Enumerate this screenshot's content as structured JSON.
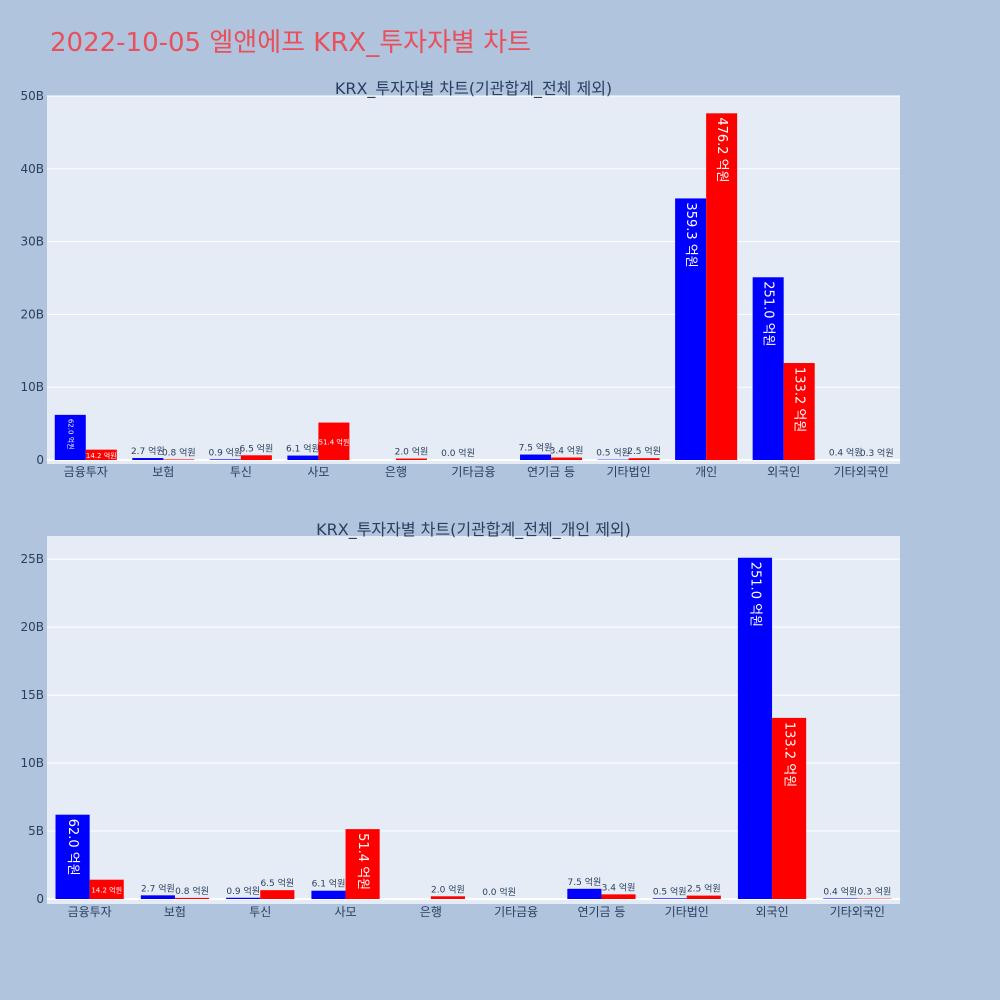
{
  "title": "2022-10-05 엘앤에프 KRX_투자자별 차트",
  "colors": {
    "background": "#b0c4de",
    "plot_bg": "#e5ecf6",
    "buy": "#0000ff",
    "sell": "#ff0000",
    "title": "#e8505b"
  },
  "chart_data": [
    {
      "type": "bar",
      "title": "KRX_투자자별 차트(기관합계_전체 제외)",
      "categories": [
        "금융투자",
        "보험",
        "투신",
        "사모",
        "은행",
        "기타금융",
        "연기금 등",
        "기타법인",
        "개인",
        "외국인",
        "기타외국인"
      ],
      "series": [
        {
          "values": [
            62.0,
            2.7,
            0.9,
            6.1,
            null,
            0.0,
            7.5,
            0.5,
            359.3,
            251.0,
            0.4
          ],
          "labels": [
            "62.0 억원",
            "2.7 억원",
            "0.9 억원",
            "6.1 억원",
            "",
            "0.0 억원",
            "7.5 억원",
            "0.5 억원",
            "359.3 억원",
            "251.0 억원",
            "0.4 억원"
          ]
        },
        {
          "values": [
            14.2,
            0.8,
            6.5,
            51.4,
            2.0,
            null,
            3.4,
            2.5,
            476.2,
            133.2,
            0.3
          ],
          "labels": [
            "14.2 억원",
            "0.8 억원",
            "6.5 억원",
            "51.4 억원",
            "2.0 억원",
            "",
            "3.4 억원",
            "2.5 억원",
            "476.2 억원",
            "133.2 억원",
            "0.3 억원"
          ]
        }
      ],
      "y_ticks": [
        "0",
        "10B",
        "20B",
        "30B",
        "40B",
        "50B"
      ],
      "y_tick_values": [
        0,
        100,
        200,
        300,
        400,
        500
      ],
      "ylim": [
        0,
        500
      ],
      "grid": true
    },
    {
      "type": "bar",
      "title": "KRX_투자자별 차트(기관합계_전체_개인 제외)",
      "categories": [
        "금융투자",
        "보험",
        "투신",
        "사모",
        "은행",
        "기타금융",
        "연기금 등",
        "기타법인",
        "외국인",
        "기타외국인"
      ],
      "series": [
        {
          "values": [
            62.0,
            2.7,
            0.9,
            6.1,
            null,
            0.0,
            7.5,
            0.5,
            251.0,
            0.4
          ],
          "labels": [
            "62.0 억원",
            "2.7 억원",
            "0.9 억원",
            "6.1 억원",
            "",
            "0.0 억원",
            "7.5 억원",
            "0.5 억원",
            "251.0 억원",
            "0.4 억원"
          ]
        },
        {
          "values": [
            14.2,
            0.8,
            6.5,
            51.4,
            2.0,
            null,
            3.4,
            2.5,
            133.2,
            0.3
          ],
          "labels": [
            "14.2 억원",
            "0.8 억원",
            "6.5 억원",
            "51.4 억원",
            "2.0 억원",
            "",
            "3.4 억원",
            "2.5 억원",
            "133.2 억원",
            "0.3 억원"
          ]
        }
      ],
      "y_ticks": [
        "0",
        "5B",
        "10B",
        "15B",
        "20B",
        "25B"
      ],
      "y_tick_values": [
        0,
        50,
        100,
        150,
        200,
        250
      ],
      "ylim": [
        0,
        267
      ],
      "grid": true
    }
  ]
}
